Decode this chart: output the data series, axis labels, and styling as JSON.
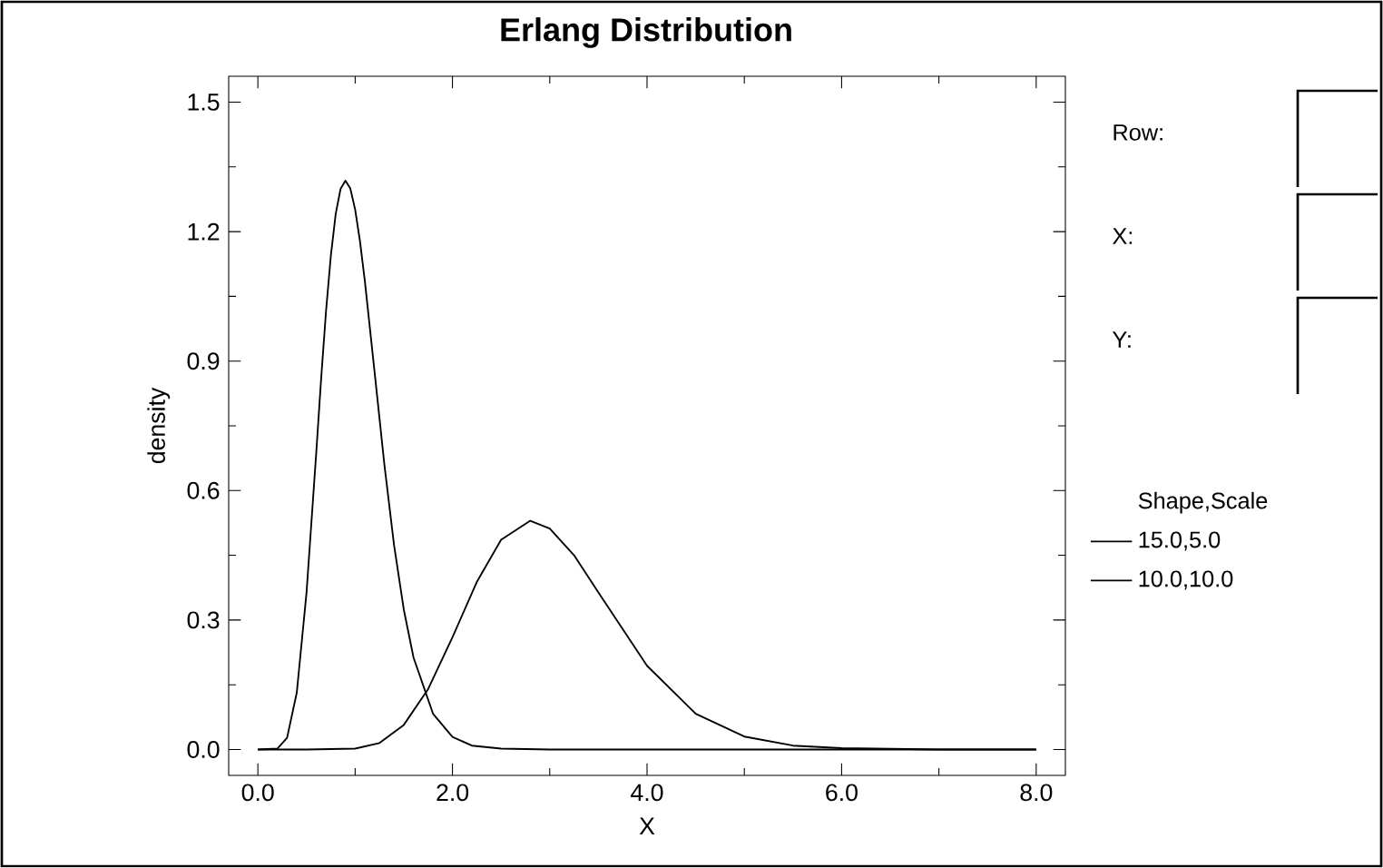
{
  "chart_data": {
    "type": "line",
    "title": "Erlang Distribution",
    "xlabel": "X",
    "ylabel": "density",
    "legend_title": "Shape,Scale",
    "legend": "right",
    "marker": "none",
    "line_style": "solid",
    "annotations": [
      "Row:",
      "X:",
      "Y:"
    ],
    "xlim": [
      -0.3,
      8.3
    ],
    "ylim": [
      -0.06,
      1.56
    ],
    "xticks": [
      {
        "value": 0,
        "label": "0.0"
      },
      {
        "value": 2,
        "label": "2.0"
      },
      {
        "value": 4,
        "label": "4.0"
      },
      {
        "value": 6,
        "label": "6.0"
      },
      {
        "value": 8,
        "label": "8.0"
      }
    ],
    "yticks": [
      {
        "value": 0,
        "label": "0.0"
      },
      {
        "value": 0.3,
        "label": "0.3"
      },
      {
        "value": 0.6,
        "label": "0.6"
      },
      {
        "value": 0.9,
        "label": "0.9"
      },
      {
        "value": 1.2,
        "label": "1.2"
      },
      {
        "value": 1.5,
        "label": "1.5"
      }
    ],
    "series": [
      {
        "name": "15.0,5.0",
        "color": "#000000",
        "x": [
          0,
          0.5,
          1,
          1.25,
          1.5,
          1.75,
          2,
          2.25,
          2.5,
          2.8,
          3,
          3.25,
          3.5,
          4,
          4.5,
          5,
          5.5,
          6,
          7,
          8
        ],
        "values": [
          0,
          0,
          0.002,
          0.015,
          0.057,
          0.14,
          0.26,
          0.388,
          0.486,
          0.53,
          0.512,
          0.45,
          0.364,
          0.194,
          0.083,
          0.03,
          0.009,
          0.003,
          0,
          0
        ]
      },
      {
        "name": "10.0,10.0",
        "color": "#000000",
        "x": [
          0,
          0.2,
          0.3,
          0.4,
          0.5,
          0.6,
          0.65,
          0.7,
          0.75,
          0.8,
          0.85,
          0.9,
          0.95,
          1,
          1.05,
          1.1,
          1.2,
          1.3,
          1.4,
          1.5,
          1.6,
          1.8,
          2,
          2.2,
          2.5,
          3,
          8
        ],
        "values": [
          0,
          0.002,
          0.027,
          0.132,
          0.363,
          0.688,
          0.858,
          1.014,
          1.144,
          1.241,
          1.299,
          1.318,
          1.3,
          1.251,
          1.177,
          1.085,
          0.874,
          0.661,
          0.473,
          0.324,
          0.213,
          0.083,
          0.029,
          0.009,
          0.002,
          0,
          0
        ]
      }
    ]
  }
}
